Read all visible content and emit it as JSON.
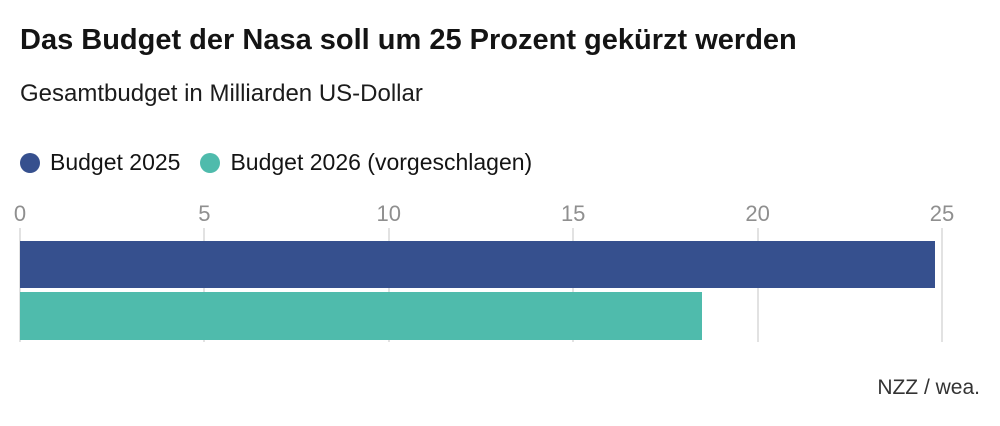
{
  "header": {
    "title": "Das Budget der Nasa soll um 25 Prozent gekürzt werden",
    "subtitle": "Gesamtbudget in Milliarden US-Dollar"
  },
  "legend": {
    "items": [
      {
        "label": "Budget 2025",
        "color": "#36508e"
      },
      {
        "label": "Budget 2026 (vorgeschlagen)",
        "color": "#4fbbac"
      }
    ]
  },
  "chart_data": {
    "type": "bar",
    "orientation": "horizontal",
    "title": "Das Budget der Nasa soll um 25 Prozent gekürzt werden",
    "subtitle": "Gesamtbudget in Milliarden US-Dollar",
    "categories": [
      "Budget 2025",
      "Budget 2026 (vorgeschlagen)"
    ],
    "values": [
      24.8,
      18.5
    ],
    "bar_colors": [
      "#36508e",
      "#4fbbac"
    ],
    "unit": "Milliarden US-Dollar",
    "xlim": [
      0,
      25
    ],
    "xticks": [
      0,
      5,
      10,
      15,
      20,
      25
    ],
    "grid": true,
    "gridline_color": "#e2e2e2",
    "tick_label_color": "#8f8f8f",
    "legend_position": "top",
    "axis_position": "top"
  },
  "source": {
    "label": "NZZ / wea."
  }
}
